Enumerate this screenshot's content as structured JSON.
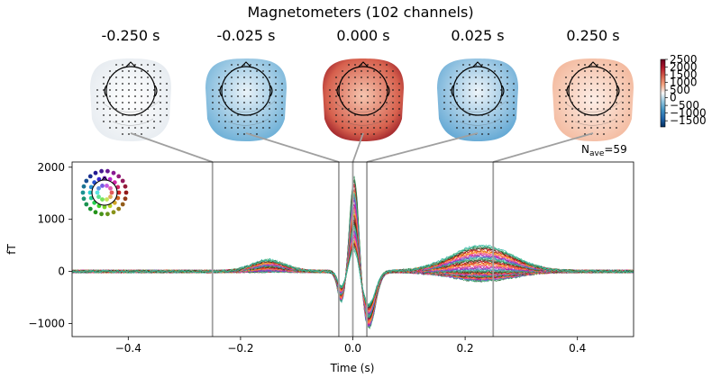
{
  "chart_data": {
    "type": "line",
    "title": "Magnetometers (102 channels)",
    "xlabel": "Time (s)",
    "ylabel": "fT",
    "xlim": [
      -0.5,
      0.5
    ],
    "ylim": [
      -1250,
      2100
    ],
    "x_ticks": [
      -0.4,
      -0.2,
      0.0,
      0.2,
      0.4
    ],
    "x_tick_labels": [
      "−0.4",
      "−0.2",
      "0.0",
      "0.2",
      "0.4"
    ],
    "y_ticks": [
      -1000,
      0,
      1000,
      2000
    ],
    "y_tick_labels": [
      "−1000",
      "0",
      "1000",
      "2000"
    ],
    "nave_label": "N",
    "nave_sub": "ave",
    "nave_value": "=59",
    "topomap_times": [
      -0.25,
      -0.025,
      0.0,
      0.025,
      0.25
    ],
    "topomap_labels": [
      "-0.250 s",
      "-0.025 s",
      "0.000 s",
      "0.025 s",
      "0.250 s"
    ],
    "topomap_colors": [
      "#eef1f4",
      "#a7cde6",
      "#c9372c",
      "#a9cfe8",
      "#f6d3c4"
    ],
    "colorbar_ticks": [
      2500,
      2000,
      1500,
      1000,
      500,
      0,
      -500,
      -1000,
      -1500
    ],
    "colorbar_tick_labels": [
      "2500",
      "2000",
      "1500",
      "1000",
      "500",
      "0",
      "−500",
      "−1000",
      "−1500"
    ],
    "colorbar_range": [
      -1900,
      2500
    ],
    "colorbar_colors": [
      "#053061",
      "#2166ac",
      "#4393c3",
      "#92c5de",
      "#f7f7f7",
      "#f4a582",
      "#d6604d",
      "#b2182b",
      "#67001f"
    ],
    "series_summary": {
      "n_channels": 102,
      "peak_time_s": 0.003,
      "peak_max_fT": 1950,
      "trough_1_time_s": -0.02,
      "trough_1_min_fT": -600,
      "trough_2_time_s": 0.028,
      "trough_2_min_fT": -1100,
      "late_peak_time_s": 0.23,
      "late_peak_max_fT": 500,
      "late_trough_min_fT": -180,
      "early_bump_time_s": -0.15,
      "early_bump_fT": 220
    },
    "channel_colors": [
      "#0b3d1e",
      "#1f6b2a",
      "#2e8b57",
      "#3cb371",
      "#66cdaa",
      "#20b2aa",
      "#5f9ea0",
      "#4682b4",
      "#6a5acd",
      "#8a2be2",
      "#9932cc",
      "#c71585",
      "#db7093",
      "#ff1493",
      "#ff69b4",
      "#e9967a",
      "#ff7f50",
      "#ff8c00",
      "#ffa500",
      "#d2691e",
      "#b22222",
      "#dc143c",
      "#8b0000",
      "#cd5c5c"
    ]
  }
}
